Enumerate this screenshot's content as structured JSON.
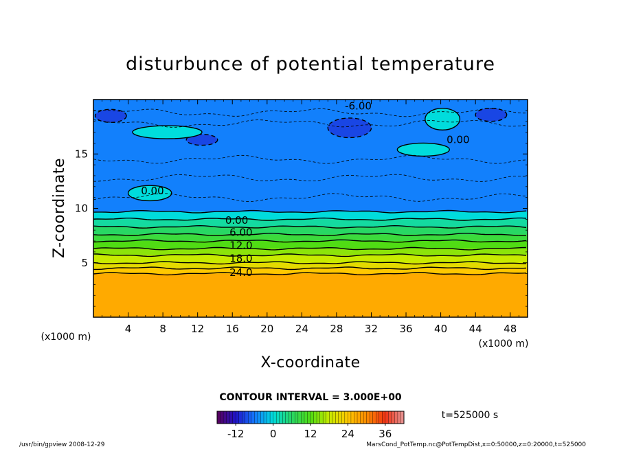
{
  "chart_data": {
    "type": "heatmap",
    "title": "disturbunce of potential temperature",
    "xlabel": "X-coordinate",
    "ylabel": "Z-coordinate",
    "x_unit": "(x1000 m)",
    "z_unit": "(x1000 m)",
    "xlim": [
      0,
      50
    ],
    "ylim": [
      0,
      20
    ],
    "x_ticks": [
      "4",
      "8",
      "12",
      "16",
      "20",
      "24",
      "28",
      "32",
      "36",
      "40",
      "44",
      "48"
    ],
    "y_ticks": [
      "5",
      "10",
      "15"
    ],
    "contour_interval_text": "CONTOUR INTERVAL = 3.000E+00",
    "time_text": "t=525000 s",
    "colorbar": {
      "min": -18,
      "max": 42,
      "ticks": [
        "-12",
        "0",
        "12",
        "24",
        "36"
      ],
      "tick_values": [
        -12,
        0,
        12,
        24,
        36
      ]
    },
    "layers": [
      {
        "z_top": 20,
        "z_bottom": 9.7,
        "value": -5.5
      },
      {
        "z_top": 9.7,
        "z_bottom": 9.0,
        "value": 0
      },
      {
        "z_top": 9.0,
        "z_bottom": 8.3,
        "value": 3
      },
      {
        "z_top": 8.3,
        "z_bottom": 7.6,
        "value": 6
      },
      {
        "z_top": 7.6,
        "z_bottom": 7.0,
        "value": 9
      },
      {
        "z_top": 7.0,
        "z_bottom": 6.3,
        "value": 12
      },
      {
        "z_top": 6.3,
        "z_bottom": 5.7,
        "value": 15
      },
      {
        "z_top": 5.7,
        "z_bottom": 5.0,
        "value": 18
      },
      {
        "z_top": 5.0,
        "z_bottom": 4.5,
        "value": 21
      },
      {
        "z_top": 4.5,
        "z_bottom": 4.0,
        "value": 24
      },
      {
        "z_top": 4.0,
        "z_bottom": 0,
        "value": 27
      }
    ],
    "contour_labels": [
      {
        "text": "-6.00",
        "x": 30.5,
        "z": 19.4
      },
      {
        "text": "0.00",
        "x": 42.0,
        "z": 16.3
      },
      {
        "text": "0.00",
        "x": 6.8,
        "z": 11.6
      },
      {
        "text": "0.00",
        "x": 16.5,
        "z": 8.9
      },
      {
        "text": "6.00",
        "x": 17.0,
        "z": 7.8
      },
      {
        "text": "12.0",
        "x": 17.0,
        "z": 6.6
      },
      {
        "text": "18.0",
        "x": 17.0,
        "z": 5.4
      },
      {
        "text": "24.0",
        "x": 17.0,
        "z": 4.1
      }
    ],
    "cold_patches": [
      {
        "x": 29.5,
        "z": 17.4,
        "rx": 2.5,
        "rz": 0.9
      },
      {
        "x": 45.8,
        "z": 18.6,
        "rx": 1.8,
        "rz": 0.6
      },
      {
        "x": 2.0,
        "z": 18.5,
        "rx": 1.8,
        "rz": 0.6
      },
      {
        "x": 12.5,
        "z": 16.3,
        "rx": 1.8,
        "rz": 0.5
      }
    ],
    "warm_patches": [
      {
        "x": 40.2,
        "z": 18.2,
        "rx": 2.0,
        "rz": 1.0
      },
      {
        "x": 38.0,
        "z": 15.4,
        "rx": 3.0,
        "rz": 0.6
      },
      {
        "x": 6.5,
        "z": 11.4,
        "rx": 2.5,
        "rz": 0.7
      },
      {
        "x": 8.5,
        "z": 17.0,
        "rx": 4.0,
        "rz": 0.6
      }
    ]
  },
  "footer": {
    "left": "/usr/bin/gpview   2008-12-29",
    "right": "MarsCond_PotTemp.nc@PotTempDist,x=0:50000,z=0:20000,t=525000"
  }
}
